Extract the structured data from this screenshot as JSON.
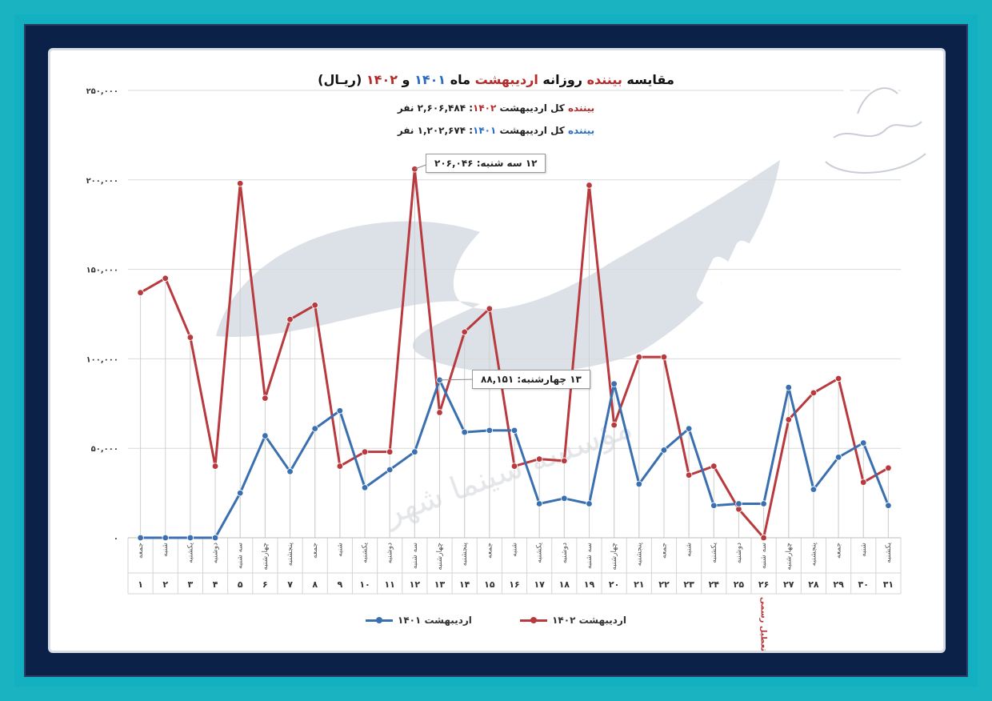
{
  "chart_data": {
    "type": "line",
    "title": "مقایسه بیننده روزانه اردیبهشت ماه ۱۴۰۱ و ۱۴۰۲ (ریـال)",
    "title_parts": [
      "مقایسه ",
      "بیننده",
      " روزانه ",
      "اردیبهشت",
      " ماه ",
      "۱۴۰۱",
      " و ",
      "۱۴۰۲",
      " (ریـال)"
    ],
    "subtitle_1402": [
      "بیننده",
      " کل اردیبهشت ",
      "۱۴۰۲",
      ": ۲,۶۰۶,۴۸۴ نفر"
    ],
    "subtitle_1401": [
      "بیننده",
      " کل اردیبهشت ",
      "۱۴۰۱",
      ": ۱,۲۰۲,۶۷۴ نفر"
    ],
    "ylim": [
      0,
      250000
    ],
    "yticks": [
      {
        "value": 0,
        "label": "۰"
      },
      {
        "value": 50000,
        "label": "۵۰,۰۰۰"
      },
      {
        "value": 100000,
        "label": "۱۰۰,۰۰۰"
      },
      {
        "value": 150000,
        "label": "۱۵۰,۰۰۰"
      },
      {
        "value": 200000,
        "label": "۲۰۰,۰۰۰"
      },
      {
        "value": 250000,
        "label": "۲۵۰,۰۰۰"
      }
    ],
    "grid": true,
    "legend_position": "bottom",
    "days": [
      "۱",
      "۲",
      "۳",
      "۴",
      "۵",
      "۶",
      "۷",
      "۸",
      "۹",
      "۱۰",
      "۱۱",
      "۱۲",
      "۱۳",
      "۱۴",
      "۱۵",
      "۱۶",
      "۱۷",
      "۱۸",
      "۱۹",
      "۲۰",
      "۲۱",
      "۲۲",
      "۲۳",
      "۲۴",
      "۲۵",
      "۲۶",
      "۲۷",
      "۲۸",
      "۲۹",
      "۳۰",
      "۳۱"
    ],
    "weekdays": [
      "جمعه",
      "شنبه",
      "یکشنبه",
      "دوشنبه",
      "سه شنبه",
      "چهارشنبه",
      "پنجشنبه",
      "جمعه",
      "شنبه",
      "یکشنبه",
      "دوشنبه",
      "سه شنبه",
      "چهارشنبه",
      "پنجشنبه",
      "جمعه",
      "شنبه",
      "یکشنبه",
      "دوشنبه",
      "سه شنبه",
      "چهارشنبه",
      "پنجشنبه",
      "جمعه",
      "شنبه",
      "یکشنبه",
      "دوشنبه",
      "سه شنبه",
      "چهارشنبه",
      "پنجشنبه",
      "جمعه",
      "شنبه",
      "یکشنبه"
    ],
    "holiday_note": {
      "day_index": 25,
      "text": "تعطیل رسمی"
    },
    "series": [
      {
        "name": "اردیبهشت ۱۴۰۲",
        "color": "#b83a3e",
        "values": [
          137000,
          145000,
          112000,
          40000,
          198000,
          78000,
          122000,
          130000,
          40000,
          48000,
          48000,
          206046,
          70000,
          115000,
          128000,
          40000,
          44000,
          43000,
          197000,
          63000,
          101000,
          101000,
          35000,
          40000,
          16000,
          0,
          66000,
          81000,
          89000,
          31000,
          39000
        ]
      },
      {
        "name": "اردیبهشت ۱۴۰۱",
        "color": "#3a6fb0",
        "values": [
          0,
          0,
          0,
          0,
          25000,
          57000,
          37000,
          61000,
          71000,
          28000,
          38000,
          48000,
          88151,
          59000,
          60000,
          60000,
          19000,
          22000,
          19000,
          86000,
          30000,
          49000,
          61000,
          18000,
          19000,
          19000,
          84000,
          27000,
          45000,
          53000,
          18000
        ]
      }
    ],
    "annotations": [
      {
        "series": 0,
        "day_index": 11,
        "text": "۱۲ سه شنبه: ۲۰۶,۰۴۶"
      },
      {
        "series": 1,
        "day_index": 12,
        "text": "۱۳ چهارشنبه: ۸۸,۱۵۱"
      }
    ]
  },
  "watermark_text": "مؤسسه سینما شهر"
}
